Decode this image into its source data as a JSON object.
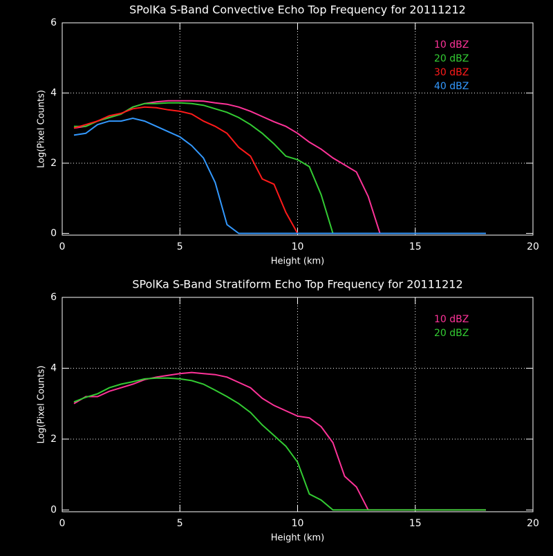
{
  "chart_data": [
    {
      "type": "line",
      "title": "SPolKa S-Band Convective Echo Top Frequency for 20111212",
      "xlabel": "Height (km)",
      "ylabel": "Log(Pixel Counts)",
      "x": [
        0.5,
        1,
        1.5,
        2,
        2.5,
        3,
        3.5,
        4,
        4.5,
        5,
        5.5,
        6,
        6.5,
        7,
        7.5,
        8,
        8.5,
        9,
        9.5,
        10,
        10.5,
        11,
        11.5,
        12,
        12.5,
        13,
        13.5,
        14,
        14.5,
        15,
        15.5,
        16,
        16.5,
        17,
        17.5,
        18
      ],
      "series": [
        {
          "name": "10 dBZ",
          "color": "#ff3399",
          "values": [
            3.0,
            3.05,
            3.2,
            3.3,
            3.4,
            3.6,
            3.7,
            3.75,
            3.78,
            3.78,
            3.78,
            3.77,
            3.72,
            3.68,
            3.6,
            3.48,
            3.33,
            3.18,
            3.05,
            2.85,
            2.6,
            2.4,
            2.15,
            1.95,
            1.75,
            1.05,
            0,
            0,
            0,
            0,
            0,
            0,
            0,
            0,
            0,
            0
          ]
        },
        {
          "name": "20 dBZ",
          "color": "#33cc33",
          "values": [
            3.05,
            3.05,
            3.2,
            3.3,
            3.4,
            3.6,
            3.7,
            3.7,
            3.72,
            3.72,
            3.7,
            3.65,
            3.55,
            3.45,
            3.3,
            3.1,
            2.85,
            2.55,
            2.2,
            2.1,
            1.9,
            1.1,
            0,
            0,
            0,
            0,
            0,
            0,
            0,
            0,
            0,
            0,
            0,
            0,
            0,
            0
          ]
        },
        {
          "name": "30 dBZ",
          "color": "#ff1a1a",
          "values": [
            3.0,
            3.1,
            3.2,
            3.35,
            3.42,
            3.55,
            3.6,
            3.58,
            3.52,
            3.48,
            3.4,
            3.2,
            3.05,
            2.85,
            2.45,
            2.2,
            1.55,
            1.4,
            0.6,
            0,
            0,
            0,
            0,
            0,
            0,
            0,
            0,
            0,
            0,
            0,
            0,
            0,
            0,
            0,
            0,
            0
          ]
        },
        {
          "name": "40 dBZ",
          "color": "#3399ff",
          "values": [
            2.8,
            2.85,
            3.1,
            3.2,
            3.2,
            3.28,
            3.2,
            3.05,
            2.9,
            2.75,
            2.5,
            2.15,
            1.45,
            0.25,
            0,
            0,
            0,
            0,
            0,
            0,
            0,
            0,
            0,
            0,
            0,
            0,
            0,
            0,
            0,
            0,
            0,
            0,
            0,
            0,
            0,
            0
          ]
        }
      ],
      "xlim": [
        0,
        20
      ],
      "xticks": [
        0,
        5,
        10,
        15,
        20
      ],
      "ylim": [
        -0.05,
        6
      ],
      "yticks": [
        0,
        2,
        4,
        6
      ],
      "grid": true,
      "legend": "upper right"
    },
    {
      "type": "line",
      "title": "SPolKa S-Band Stratiform Echo Top Frequency for 20111212",
      "xlabel": "Height (km)",
      "ylabel": "Log(Pixel Counts)",
      "x": [
        0.5,
        1,
        1.5,
        2,
        2.5,
        3,
        3.5,
        4,
        4.5,
        5,
        5.5,
        6,
        6.5,
        7,
        7.5,
        8,
        8.5,
        9,
        9.5,
        10,
        10.5,
        11,
        11.5,
        12,
        12.5,
        13,
        13.5,
        14,
        14.5,
        15,
        15.5,
        16,
        16.5,
        17,
        17.5,
        18
      ],
      "series": [
        {
          "name": "10 dBZ",
          "color": "#ff3399",
          "values": [
            3.0,
            3.2,
            3.2,
            3.35,
            3.45,
            3.55,
            3.68,
            3.75,
            3.8,
            3.85,
            3.88,
            3.85,
            3.82,
            3.75,
            3.6,
            3.45,
            3.15,
            2.95,
            2.8,
            2.65,
            2.6,
            2.35,
            1.9,
            0.95,
            0.65,
            0,
            0,
            0,
            0,
            0,
            0,
            0,
            0,
            0,
            0,
            0
          ]
        },
        {
          "name": "20 dBZ",
          "color": "#33cc33",
          "values": [
            3.05,
            3.18,
            3.28,
            3.45,
            3.55,
            3.62,
            3.7,
            3.72,
            3.72,
            3.7,
            3.65,
            3.55,
            3.38,
            3.2,
            3.0,
            2.75,
            2.4,
            2.1,
            1.8,
            1.35,
            0.45,
            0.28,
            0,
            0,
            0,
            0,
            0,
            0,
            0,
            0,
            0,
            0,
            0,
            0,
            0,
            0
          ]
        }
      ],
      "xlim": [
        0,
        20
      ],
      "xticks": [
        0,
        5,
        10,
        15,
        20
      ],
      "ylim": [
        -0.05,
        6
      ],
      "yticks": [
        0,
        2,
        4,
        6
      ],
      "grid": true,
      "legend": "upper right"
    }
  ]
}
